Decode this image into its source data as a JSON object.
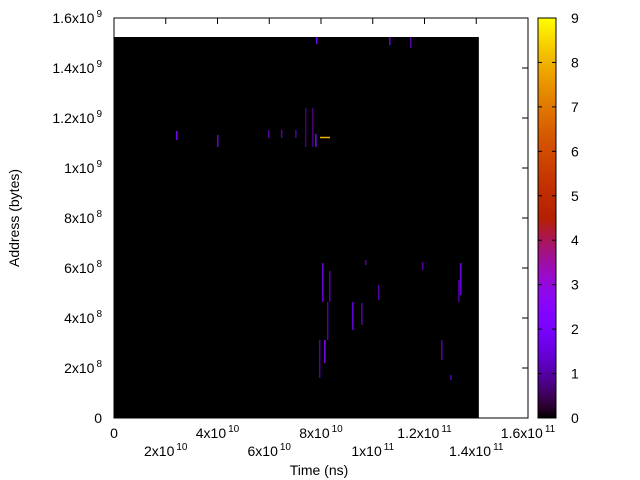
{
  "chart_data": {
    "type": "heatmap",
    "title": "",
    "xlabel": "Time (ns)",
    "ylabel": "Address (bytes)",
    "xlim": [
      0,
      160000000000
    ],
    "ylim": [
      0,
      1600000000
    ],
    "data_extent": {
      "x": [
        0,
        141000000000
      ],
      "y": [
        0,
        1524000000
      ]
    },
    "background_value": 0,
    "cbrange": [
      0,
      9
    ],
    "palette": "black-blue-red-yellow (gnuplot default rgbformulae 7,5,15)",
    "grid": false,
    "x_ticks": [
      {
        "base": "0",
        "exp": ""
      },
      {
        "base": "2x10",
        "exp": "10"
      },
      {
        "base": "4x10",
        "exp": "10"
      },
      {
        "base": "6x10",
        "exp": "10"
      },
      {
        "base": "8x10",
        "exp": "10"
      },
      {
        "base": "1x10",
        "exp": "11"
      },
      {
        "base": "1.2x10",
        "exp": "11"
      },
      {
        "base": "1.4x10",
        "exp": "11"
      },
      {
        "base": "1.6x10",
        "exp": "11"
      }
    ],
    "x_tick_values": [
      0,
      20000000000,
      40000000000,
      60000000000,
      80000000000,
      100000000000,
      120000000000,
      140000000000,
      160000000000
    ],
    "y_ticks": [
      {
        "base": "0",
        "exp": ""
      },
      {
        "base": "2x10",
        "exp": "8"
      },
      {
        "base": "4x10",
        "exp": "8"
      },
      {
        "base": "6x10",
        "exp": "8"
      },
      {
        "base": "8x10",
        "exp": "8"
      },
      {
        "base": "1x10",
        "exp": "9"
      },
      {
        "base": "1.2x10",
        "exp": "9"
      },
      {
        "base": "1.4x10",
        "exp": "9"
      },
      {
        "base": "1.6x10",
        "exp": "9"
      }
    ],
    "y_tick_values": [
      0,
      200000000,
      400000000,
      600000000,
      800000000,
      1000000000,
      1200000000,
      1400000000,
      1600000000
    ],
    "cb_ticks": [
      "0",
      "1",
      "2",
      "3",
      "4",
      "5",
      "6",
      "7",
      "8",
      "9"
    ],
    "cells": [
      {
        "t": 24000000000,
        "addr": [
          1112000000,
          1148000000
        ],
        "value": 2
      },
      {
        "t": 39800000000,
        "addr": [
          1084000000,
          1132000000
        ],
        "value": 1.5
      },
      {
        "t": 59500000000,
        "addr": [
          1120000000,
          1152000000
        ],
        "value": 1
      },
      {
        "t": 64500000000,
        "addr": [
          1120000000,
          1152000000
        ],
        "value": 1
      },
      {
        "t": 70000000000,
        "addr": [
          1120000000,
          1152000000
        ],
        "value": 1
      },
      {
        "t": 73800000000,
        "addr": [
          1084000000,
          1240000000
        ],
        "value": 0.7
      },
      {
        "t": 76500000000,
        "addr": [
          1084000000,
          1240000000
        ],
        "value": 0.7
      },
      {
        "t": 77700000000,
        "addr": [
          1084000000,
          1136000000
        ],
        "value": 2
      },
      {
        "t": 79600000000,
        "t_end": 83500000000,
        "addr": [
          1119000000,
          1125000000
        ],
        "value": 8
      },
      {
        "t": 78100000000,
        "addr": [
          1496000000,
          1524000000
        ],
        "value": 2
      },
      {
        "t": 80400000000,
        "addr": [
          464000000,
          620000000
        ],
        "value": 1.5
      },
      {
        "t": 83100000000,
        "addr": [
          464000000,
          588000000
        ],
        "value": 1
      },
      {
        "t": 82300000000,
        "addr": [
          312000000,
          464000000
        ],
        "value": 1
      },
      {
        "t": 92000000000,
        "addr": [
          352000000,
          464000000
        ],
        "value": 1.5
      },
      {
        "t": 95500000000,
        "addr": [
          372000000,
          460000000
        ],
        "value": 1
      },
      {
        "t": 97000000000,
        "addr": [
          612000000,
          632000000
        ],
        "value": 1
      },
      {
        "t": 102000000000,
        "addr": [
          472000000,
          532000000
        ],
        "value": 1
      },
      {
        "t": 119000000000,
        "addr": [
          592000000,
          624000000
        ],
        "value": 1
      },
      {
        "t": 133700000000,
        "addr": [
          492000000,
          620000000
        ],
        "value": 1.5
      },
      {
        "t": 133000000000,
        "addr": [
          464000000,
          552000000
        ],
        "value": 1
      },
      {
        "t": 81200000000,
        "addr": [
          220000000,
          312000000
        ],
        "value": 2.5
      },
      {
        "t": 79200000000,
        "addr": [
          160000000,
          312000000
        ],
        "value": 1
      },
      {
        "t": 126400000000,
        "addr": [
          232000000,
          312000000
        ],
        "value": 1
      },
      {
        "t": 129900000000,
        "addr": [
          152000000,
          172000000
        ],
        "value": 1
      },
      {
        "t": 106300000000,
        "addr": [
          1492000000,
          1524000000
        ],
        "value": 1.5
      },
      {
        "t": 114400000000,
        "addr": [
          1480000000,
          1524000000
        ],
        "value": 1
      }
    ]
  }
}
